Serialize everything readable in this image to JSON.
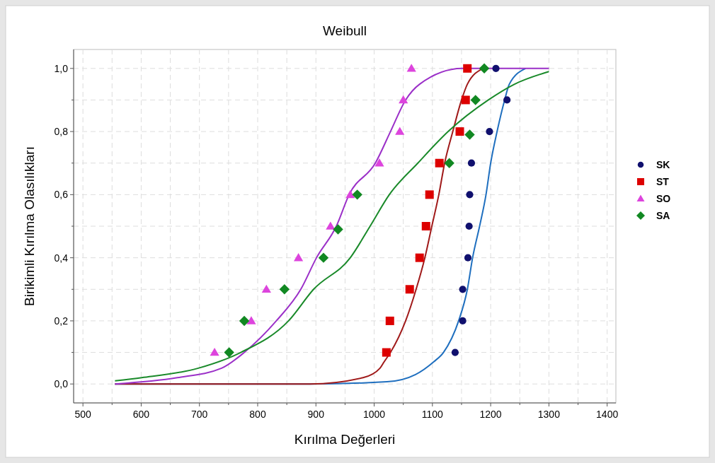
{
  "chart_data": {
    "type": "scatter",
    "title": "Weibull",
    "xlabel": "Kırılma Değerleri",
    "ylabel": "Birikimli Kırılma Olasılıkları",
    "xlim": [
      484,
      1415
    ],
    "ylim": [
      -0.06,
      1.06
    ],
    "xticks": [
      500,
      {
        "value": 550,
        "label": null
      },
      600,
      {
        "value": 650,
        "label": null
      },
      700,
      {
        "value": 750,
        "label": null
      },
      800,
      {
        "value": 850,
        "label": null
      },
      900,
      {
        "value": 950,
        "label": null
      },
      1000,
      {
        "value": 1050,
        "label": null
      },
      1100,
      {
        "value": 1150,
        "label": null
      },
      1200,
      {
        "value": 1250,
        "label": null
      },
      1300,
      {
        "value": 1350,
        "label": null
      },
      1400
    ],
    "yticks": [
      {
        "value": 0,
        "label": "0,0"
      },
      {
        "value": 0.1,
        "label": null
      },
      {
        "value": 0.2,
        "label": "0,2"
      },
      {
        "value": 0.3,
        "label": null
      },
      {
        "value": 0.4,
        "label": "0,4"
      },
      {
        "value": 0.5,
        "label": null
      },
      {
        "value": 0.6,
        "label": "0,6"
      },
      {
        "value": 0.7,
        "label": null
      },
      {
        "value": 0.8,
        "label": "0,8"
      },
      {
        "value": 0.9,
        "label": null
      },
      {
        "value": 1.0,
        "label": "1,0"
      }
    ],
    "grid": true,
    "legend": "right",
    "series": [
      {
        "type": "line",
        "color": "#1f6fbf",
        "marker": "none",
        "x": [
          555,
          890,
          1022,
          1071,
          1102,
          1119,
          1145,
          1160,
          1169,
          1181,
          1192,
          1200,
          1211,
          1224,
          1232,
          1260
        ],
        "values": [
          0,
          0,
          0.007,
          0.03,
          0.07,
          0.1,
          0.2,
          0.3,
          0.4,
          0.5,
          0.6,
          0.7,
          0.8,
          0.9,
          0.95,
          1.0
        ]
      },
      {
        "type": "line",
        "color": "#a01a1a",
        "marker": "none",
        "x": [
          555,
          890,
          981,
          1010,
          1017,
          1028,
          1054,
          1072,
          1087,
          1099,
          1111,
          1121,
          1135,
          1150,
          1160,
          1187
        ],
        "values": [
          0,
          0,
          0.02,
          0.05,
          0.07,
          0.1,
          0.2,
          0.3,
          0.4,
          0.5,
          0.6,
          0.7,
          0.8,
          0.9,
          0.95,
          1.0
        ]
      },
      {
        "type": "line",
        "color": "#9b30c8",
        "marker": "none",
        "x": [
          555,
          662,
          738,
          777,
          832,
          874,
          901,
          935,
          957,
          1002,
          1028,
          1054,
          1078,
          1151,
          1300
        ],
        "values": [
          0,
          0.02,
          0.05,
          0.1,
          0.2,
          0.3,
          0.4,
          0.5,
          0.6,
          0.7,
          0.8,
          0.9,
          0.95,
          1.0,
          1.0
        ]
      },
      {
        "type": "line",
        "color": "#1a8a2a",
        "marker": "none",
        "x": [
          555,
          601,
          698,
          771,
          853,
          896,
          959,
          993,
          1026,
          1075,
          1127,
          1196,
          1241,
          1300
        ],
        "values": [
          0.01,
          0.02,
          0.05,
          0.1,
          0.2,
          0.3,
          0.4,
          0.5,
          0.6,
          0.7,
          0.8,
          0.9,
          0.95,
          0.99
        ]
      },
      {
        "name": "SK",
        "color": "#10106e",
        "marker": "circle",
        "x": [
          1139,
          1152,
          1152,
          1161,
          1163,
          1164,
          1167,
          1198,
          1228,
          1209
        ],
        "values": [
          0.1,
          0.2,
          0.3,
          0.4,
          0.5,
          0.6,
          0.7,
          0.8,
          0.9,
          1.0
        ]
      },
      {
        "name": "ST",
        "color": "#dd0000",
        "marker": "square",
        "x": [
          1021,
          1027,
          1061,
          1078,
          1089,
          1095,
          1112,
          1147,
          1157,
          1160
        ],
        "values": [
          0.1,
          0.2,
          0.3,
          0.4,
          0.5,
          0.6,
          0.7,
          0.8,
          0.9,
          1.0
        ]
      },
      {
        "name": "SO",
        "color": "#dd44dd",
        "marker": "triangle",
        "x": [
          726,
          789,
          815,
          870,
          925,
          959,
          1009,
          1044,
          1050,
          1064
        ],
        "values": [
          0.1,
          0.2,
          0.3,
          0.4,
          0.5,
          0.6,
          0.7,
          0.8,
          0.9,
          1.0
        ]
      },
      {
        "name": "SA",
        "color": "#118822",
        "marker": "diamond",
        "x": [
          751,
          777,
          846,
          913,
          938,
          971,
          1129,
          1164,
          1174,
          1189
        ],
        "values": [
          0.1,
          0.2,
          0.3,
          0.4,
          0.49,
          0.6,
          0.7,
          0.79,
          0.9,
          1.0
        ]
      }
    ]
  }
}
